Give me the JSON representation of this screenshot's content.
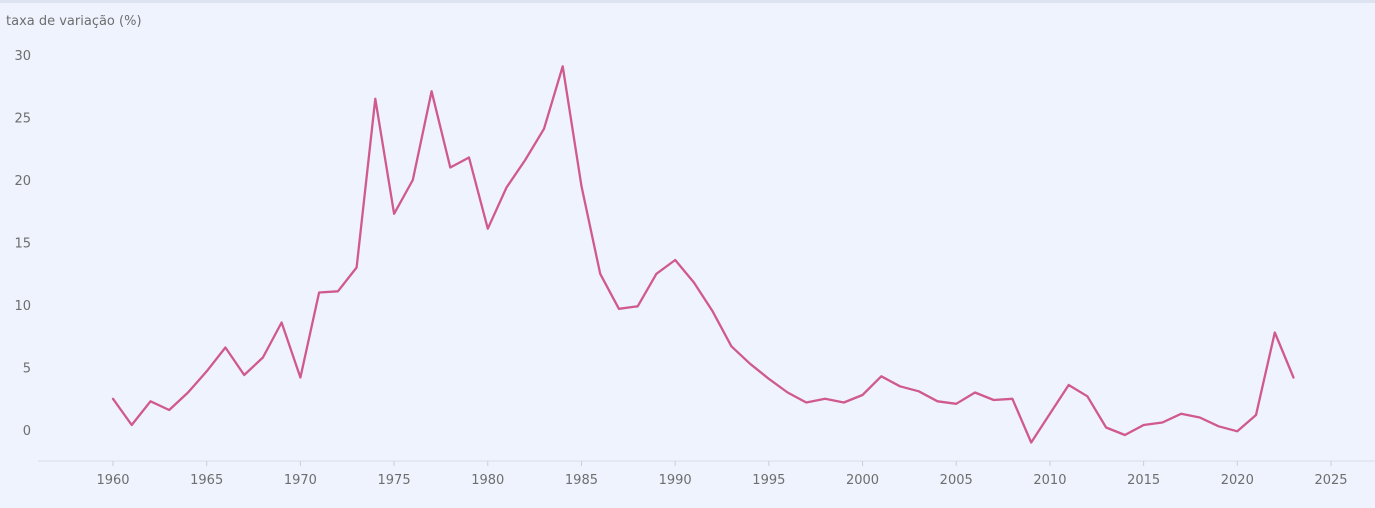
{
  "chart_data": {
    "type": "line",
    "ylabel": "taxa de variação (%)",
    "xlabel": "",
    "xlim": [
      1955,
      2026
    ],
    "ylim": [
      -2.5,
      31
    ],
    "xticks": [
      1960,
      1965,
      1970,
      1975,
      1980,
      1985,
      1990,
      1995,
      2000,
      2005,
      2010,
      2015,
      2020,
      2025
    ],
    "yticks": [
      0,
      5,
      10,
      15,
      20,
      25,
      30
    ],
    "grid": false,
    "legend": "none",
    "series": [
      {
        "color": "#d05a8c",
        "x": [
          1960,
          1961,
          1962,
          1963,
          1964,
          1965,
          1966,
          1967,
          1968,
          1969,
          1970,
          1971,
          1972,
          1973,
          1974,
          1975,
          1976,
          1977,
          1978,
          1979,
          1980,
          1981,
          1982,
          1983,
          1984,
          1985,
          1986,
          1987,
          1988,
          1989,
          1990,
          1991,
          1992,
          1993,
          1994,
          1995,
          1996,
          1997,
          1998,
          1999,
          2000,
          2001,
          2002,
          2003,
          2004,
          2005,
          2006,
          2007,
          2008,
          2009,
          2010,
          2011,
          2012,
          2013,
          2014,
          2015,
          2016,
          2017,
          2018,
          2019,
          2020,
          2021,
          2022,
          2023
        ],
        "values": [
          2.5,
          0.4,
          2.3,
          1.6,
          3.0,
          4.7,
          6.6,
          4.4,
          5.8,
          8.6,
          4.2,
          11.0,
          11.1,
          13.0,
          26.5,
          17.3,
          20.0,
          27.1,
          21.0,
          21.8,
          16.1,
          19.4,
          21.6,
          24.1,
          29.1,
          19.5,
          12.5,
          9.7,
          9.9,
          12.5,
          13.6,
          11.8,
          9.5,
          6.7,
          5.3,
          4.1,
          3.0,
          2.2,
          2.5,
          2.2,
          2.8,
          4.3,
          3.5,
          3.1,
          2.3,
          2.1,
          3.0,
          2.4,
          2.5,
          -1.0,
          1.3,
          3.6,
          2.7,
          0.2,
          -0.4,
          0.4,
          0.6,
          1.3,
          1.0,
          0.3,
          -0.1,
          1.2,
          7.8,
          4.2
        ]
      }
    ]
  }
}
